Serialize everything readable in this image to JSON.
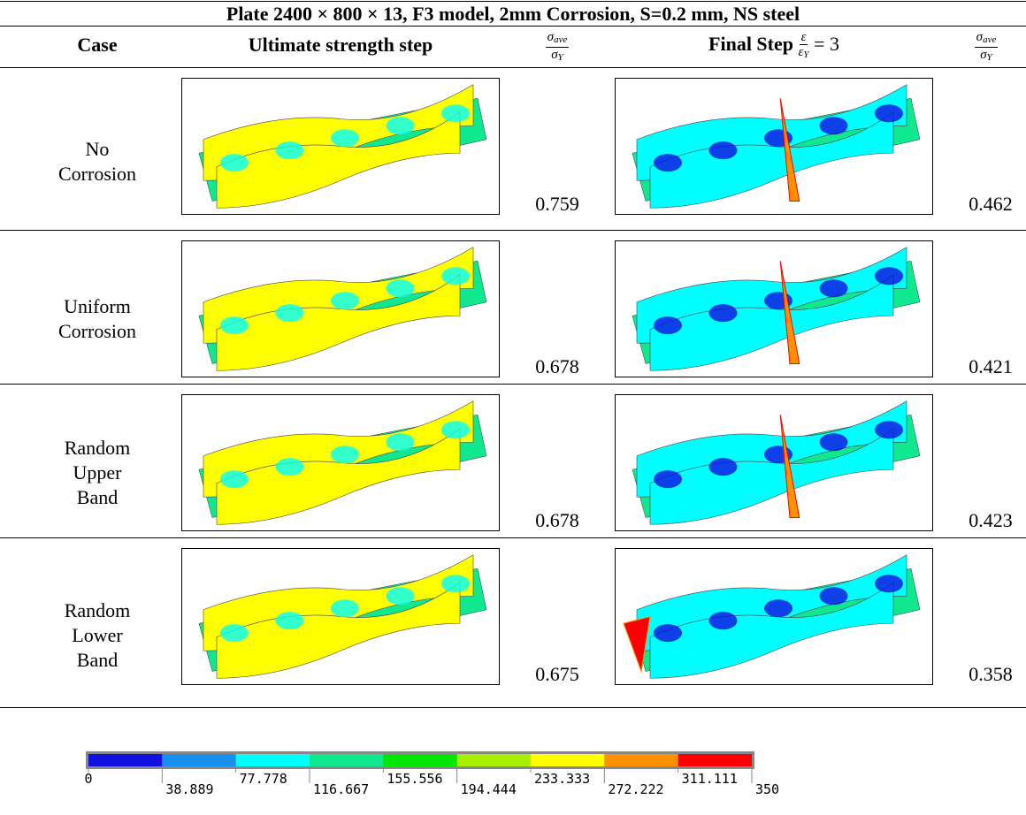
{
  "title": "Plate 2400 × 800 × 13, F3 model, 2mm Corrosion, S=0.2 mm, NS steel",
  "header": {
    "case": "Case",
    "ultimate": "Ultimate strength step",
    "ratio": {
      "num": "σ",
      "num_sub": "ave",
      "den": "σ",
      "den_sub": "Y"
    },
    "final_label": "Final Step",
    "strain": {
      "num": "ε",
      "den": "ε",
      "den_sub": "Y"
    },
    "final_value": "= 3"
  },
  "rows": [
    {
      "case": [
        "No",
        "Corrosion"
      ],
      "ultimate_ratio": 0.759,
      "final_ratio": 0.462
    },
    {
      "case": [
        "Uniform",
        "Corrosion"
      ],
      "ultimate_ratio": 0.678,
      "final_ratio": 0.421
    },
    {
      "case": [
        "Random",
        "Upper",
        "Band"
      ],
      "ultimate_ratio": 0.678,
      "final_ratio": 0.423
    },
    {
      "case": [
        "Random",
        "Lower",
        "Band"
      ],
      "ultimate_ratio": 0.675,
      "final_ratio": 0.358
    }
  ],
  "colorbar": {
    "colors": [
      "#1010e0",
      "#1890f0",
      "#00ffff",
      "#10e890",
      "#00e600",
      "#a8f000",
      "#ffff00",
      "#ff9000",
      "#ff0000"
    ],
    "ticks": [
      0,
      38.889,
      77.778,
      116.667,
      155.556,
      194.444,
      233.333,
      272.222,
      311.111,
      350
    ]
  }
}
